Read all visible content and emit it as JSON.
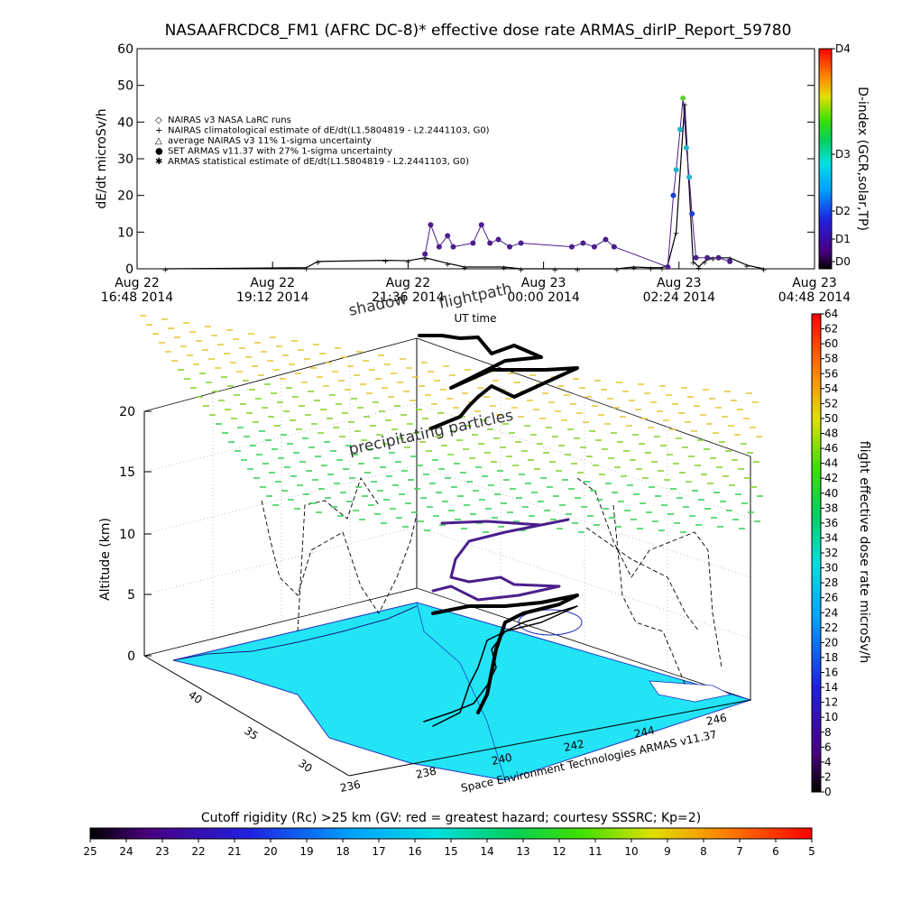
{
  "title": "NASAAFRCDC8_FM1 (AFRC DC-8)* effective dose rate ARMAS_dirIP_Report_59780",
  "colors": {
    "trace": "#000000",
    "sea": "#22e4f5",
    "dose_purple": "#4b1e8c",
    "dose_blue": "#1e3cd2",
    "dose_cyan": "#1eb4c8",
    "dose_green": "#5ad232"
  },
  "chart_data": [
    {
      "type": "line",
      "title": "NASAAFRCDC8_FM1 (AFRC DC-8)* effective dose rate ARMAS_dirIP_Report_59780",
      "ylabel": "dE/dt microSv/h",
      "xlabel": "UT time",
      "ylim": [
        0,
        60
      ],
      "yticks": [
        "0",
        "10",
        "20",
        "30",
        "40",
        "50",
        "60"
      ],
      "xlim_hours": [
        16.8,
        28.8
      ],
      "xticks": [
        {
          "hours": 16.8,
          "line1": "Aug 22",
          "line2": "16:48 2014"
        },
        {
          "hours": 19.2,
          "line1": "Aug 22",
          "line2": "19:12 2014"
        },
        {
          "hours": 21.6,
          "line1": "Aug 22",
          "line2": "21:36 2014"
        },
        {
          "hours": 24.0,
          "line1": "Aug 23",
          "line2": "00:00 2014"
        },
        {
          "hours": 26.4,
          "line1": "Aug 23",
          "line2": "02:24 2014"
        },
        {
          "hours": 28.8,
          "line1": "Aug 23",
          "line2": "04:48 2014"
        }
      ],
      "legend": [
        {
          "symbol": "◇",
          "label": "NAIRAS v3 NASA LaRC runs"
        },
        {
          "symbol": "+",
          "label": "NAIRAS climatological estimate of dE/dt(L1.5804819 - L2.2441103, G0)"
        },
        {
          "symbol": "△",
          "label": "average NAIRAS v3 11% 1-sigma uncertainty"
        },
        {
          "symbol": "●",
          "label": "SET ARMAS v11.37 with 27% 1-sigma uncertainty"
        },
        {
          "symbol": "✱",
          "label": "ARMAS statistical estimate of dE/dt(L1.5804819 - L2.2441103, G0)"
        }
      ],
      "legend_position": "left",
      "right_axis": {
        "label": "D-index (GCR,solar,TP)",
        "ticks": [
          "D0",
          "D1",
          "D2",
          "D3",
          "D4"
        ]
      },
      "series": [
        {
          "name": "NAIRAS climatological estimate of dE/dt(L1.5804819 - L2.2441103, G0)",
          "x": [
            17.3,
            19.8,
            20.0,
            21.2,
            21.6,
            21.9,
            22.3,
            22.6,
            23.3,
            23.6,
            24.2,
            24.6,
            25.3,
            25.6,
            25.9,
            26.1,
            26.2,
            26.35,
            26.5,
            26.65,
            26.75,
            26.85,
            27.0,
            27.3,
            27.6,
            27.9
          ],
          "y": [
            0,
            0.3,
            2,
            2.3,
            2.2,
            3,
            1.5,
            0.5,
            0.5,
            0,
            0,
            0,
            0,
            0.5,
            0.3,
            0.3,
            1,
            10,
            45,
            2,
            0.5,
            2,
            3,
            3,
            1,
            0
          ]
        },
        {
          "name": "SET ARMAS v11.37 with 27% 1-sigma uncertainty",
          "x": [
            21.9,
            22.0,
            22.15,
            22.3,
            22.4,
            22.75,
            22.9,
            23.05,
            23.2,
            23.4,
            23.6,
            24.5,
            24.7,
            24.9,
            25.1,
            25.25,
            26.2,
            26.3,
            26.35,
            26.42,
            26.47,
            26.53,
            26.58,
            26.63,
            26.7,
            26.9,
            27.1,
            27.3
          ],
          "y": [
            4,
            12,
            6,
            9,
            6,
            7,
            12,
            7,
            8,
            6,
            7,
            6,
            7,
            6,
            8,
            6,
            0.5,
            20,
            27,
            38,
            46.5,
            33,
            25,
            15,
            3,
            3,
            3,
            2
          ]
        }
      ]
    },
    {
      "type": "scatter",
      "title": "",
      "zlabel": "Altitude (km)",
      "zticks": [
        "0",
        "5",
        "10",
        "15",
        "20"
      ],
      "lat_ticks": [
        "30",
        "35",
        "40"
      ],
      "lon_ticks": [
        "236",
        "238",
        "240",
        "242",
        "244",
        "246"
      ],
      "annotations": [
        "shadow",
        "flightpath",
        "precipitating particles"
      ],
      "credit": "Space Environment Technologies ARMAS v11.37",
      "colorbar": {
        "label": "flight effective dose rate microSv/h",
        "ticks": [
          "0",
          "2",
          "4",
          "6",
          "8",
          "10",
          "12",
          "14",
          "16",
          "18",
          "20",
          "22",
          "24",
          "26",
          "28",
          "30",
          "32",
          "34",
          "36",
          "38",
          "40",
          "42",
          "44",
          "46",
          "48",
          "50",
          "52",
          "54",
          "56",
          "58",
          "60",
          "62",
          "64"
        ]
      }
    },
    {
      "type": "heatmap",
      "title": "Cutoff rigidity (Rc) >25 km (GV: red = greatest hazard; courtesy SSSRC; Kp=2)",
      "colorbar_ticks": [
        "25",
        "24",
        "23",
        "22",
        "21",
        "20",
        "19",
        "18",
        "17",
        "16",
        "15",
        "14",
        "13",
        "12",
        "11",
        "10",
        "9",
        "8",
        "7",
        "6",
        "5"
      ]
    }
  ]
}
